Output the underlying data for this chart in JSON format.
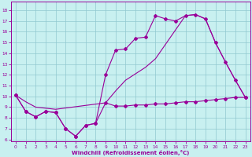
{
  "background_color": "#c8f0f0",
  "grid_color": "#90c8d0",
  "line_color": "#990099",
  "xlabel": "Windchill (Refroidissement éolien,°C)",
  "xlim": [
    -0.5,
    23.5
  ],
  "ylim": [
    5.8,
    18.8
  ],
  "xticks": [
    0,
    1,
    2,
    3,
    4,
    5,
    6,
    7,
    8,
    9,
    10,
    11,
    12,
    13,
    14,
    15,
    16,
    17,
    18,
    19,
    20,
    21,
    22,
    23
  ],
  "yticks": [
    6,
    7,
    8,
    9,
    10,
    11,
    12,
    13,
    14,
    15,
    16,
    17,
    18
  ],
  "curve1_x": [
    0,
    1,
    2,
    3,
    4,
    5,
    6,
    7,
    8,
    9,
    10,
    11,
    12,
    13,
    14,
    15,
    16,
    17,
    18,
    19,
    20,
    21,
    22,
    23
  ],
  "curve1_y": [
    10.1,
    8.6,
    8.1,
    8.6,
    8.5,
    7.0,
    6.3,
    7.3,
    7.5,
    9.4,
    9.1,
    9.1,
    9.2,
    9.2,
    9.3,
    9.3,
    9.4,
    9.5,
    9.5,
    9.6,
    9.7,
    9.8,
    9.9,
    9.9
  ],
  "curve2_x": [
    0,
    1,
    2,
    3,
    4,
    5,
    6,
    7,
    8,
    9,
    10,
    11,
    12,
    13,
    14,
    15,
    16,
    17,
    18,
    19,
    20,
    21,
    22,
    23
  ],
  "curve2_y": [
    10.1,
    8.6,
    8.1,
    8.6,
    8.5,
    7.0,
    6.3,
    7.3,
    7.5,
    12.0,
    14.3,
    14.4,
    15.4,
    15.5,
    17.5,
    17.2,
    17.0,
    17.5,
    17.6,
    17.2,
    15.0,
    13.2,
    11.5,
    9.9
  ],
  "curve3_x": [
    0,
    1,
    2,
    3,
    4,
    9,
    10,
    11,
    12,
    13,
    14,
    17,
    18,
    19,
    20,
    21,
    22,
    23
  ],
  "curve3_y": [
    10.1,
    9.5,
    9.0,
    8.9,
    8.8,
    9.4,
    10.5,
    11.5,
    12.1,
    12.7,
    13.5,
    17.5,
    17.6,
    17.2,
    15.0,
    13.2,
    11.5,
    9.9
  ]
}
